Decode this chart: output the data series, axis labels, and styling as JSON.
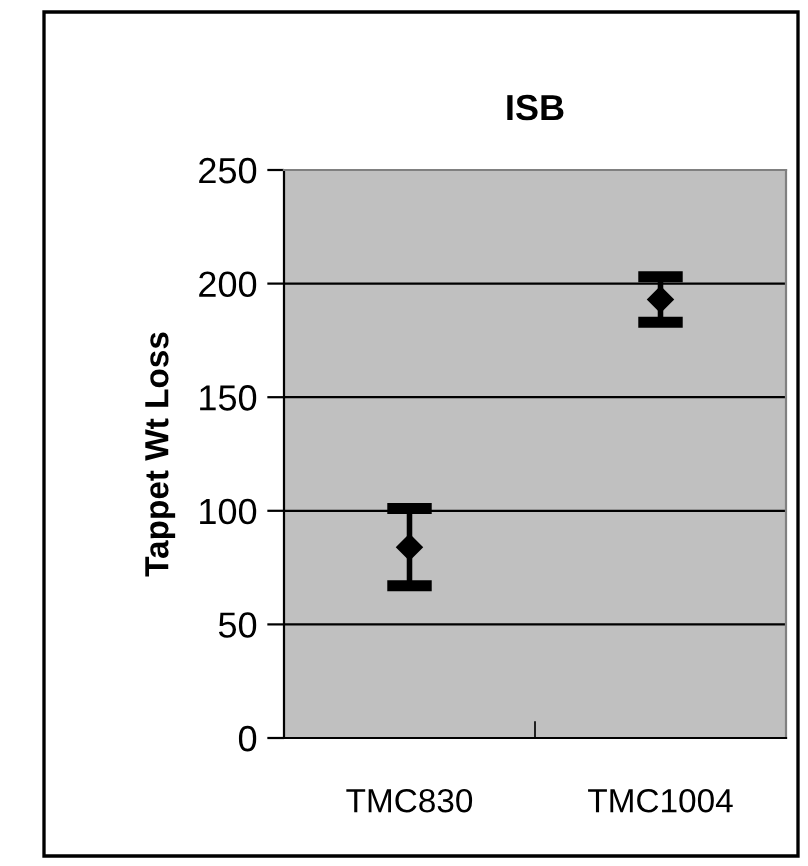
{
  "chart_data": {
    "type": "scatter",
    "title": "ISB",
    "ylabel": "Tappet Wt Loss",
    "categories": [
      "TMC830",
      "TMC1004"
    ],
    "series": [
      {
        "color": "#000000",
        "values": [
          84,
          193
        ],
        "errors": [
          17,
          10
        ]
      }
    ],
    "ylim": [
      0,
      250
    ],
    "yticks": [
      0,
      50,
      100,
      150,
      200,
      250
    ],
    "grid": "y",
    "marker": "diamond",
    "legend": false
  }
}
